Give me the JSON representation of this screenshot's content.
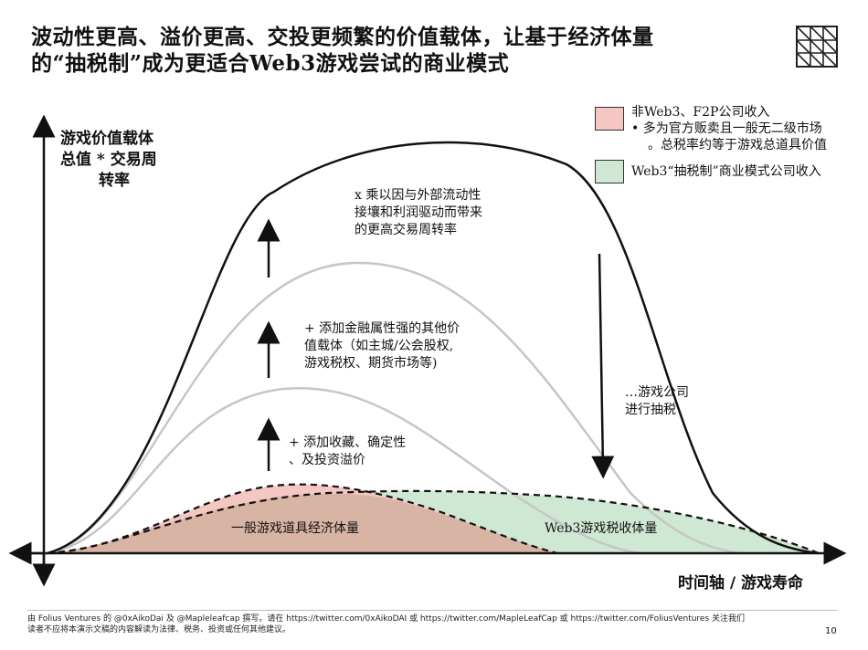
{
  "title": {
    "line1": "波动性更高、溢价更高、交投更频繁的价值载体，让基于经济体量",
    "line2": "的“抽税制”成为更适合Web3游戏尝试的商业模式"
  },
  "axes": {
    "y_label_line1": "游戏价值载体",
    "y_label_line2": "总值 * 交易周",
    "y_label_line3": "转率",
    "x_label": "时间轴 / 游戏寿命"
  },
  "legend": {
    "non_web3": {
      "title": "非Web3、F2P公司收入",
      "bullet1": "•  多为官方贩卖且一般无二级市场",
      "bullet2": "。总税率约等于游戏总道具价值",
      "color": "#f4c7c3"
    },
    "web3": {
      "title": "Web3“抽税制”商业模式公司收入",
      "color": "#cfe8d4"
    }
  },
  "annotations": {
    "multiply_line1": "x 乘以因与外部流动性",
    "multiply_line2": "接壤和利润驱动而带来",
    "multiply_line3": "的更高交易周转率",
    "financial_line1": "+ 添加金融属性强的其他价",
    "financial_line2": "值载体（如主城/公会股权,",
    "financial_line3": "游戏税权、期货市场等)",
    "collect_line1": "+ 添加收藏、确定性",
    "collect_line2": "、及投资溢价",
    "tax_line1": "…游戏公司",
    "tax_line2": "进行抽税",
    "base_economy": "一般游戏道具经济体量",
    "web3_tax": "Web3游戏税收体量"
  },
  "colors": {
    "base_fill": "#d8b4a4",
    "pink_fill": "#f4c7c3",
    "green_fill": "#cfe8d4",
    "gray_curve": "#c6c6c6"
  },
  "footer": {
    "line1": "由 Folius Ventures 的 @0xAikoDai 及 @Mapleleafcap 撰写。请在 https://twitter.com/0xAikoDAI 或 https://twitter.com/MapleLeafCap 或 https://twitter.com/FoliusVentures 关注我们",
    "line2": "读者不应将本演示文稿的内容解读为法律、税务、投资或任何其他建议。",
    "page_number": "10"
  }
}
